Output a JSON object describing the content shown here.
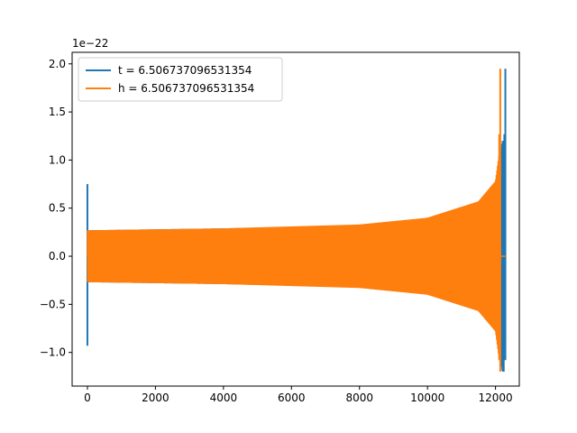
{
  "chart_data": {
    "type": "line",
    "title": "",
    "xlabel": "",
    "ylabel": "",
    "y_offset_label": "1e−22",
    "xlim": [
      -450,
      12700
    ],
    "ylim": [
      -1.35,
      2.12
    ],
    "x_ticks": [
      0,
      2000,
      4000,
      6000,
      8000,
      10000,
      12000
    ],
    "x_tick_labels": [
      "0",
      "2000",
      "4000",
      "6000",
      "8000",
      "10000",
      "12000"
    ],
    "y_ticks": [
      -1.0,
      -0.5,
      0.0,
      0.5,
      1.0,
      1.5,
      2.0
    ],
    "y_tick_labels": [
      "−1.0",
      "−0.5",
      "0.0",
      "0.5",
      "1.0",
      "1.5",
      "2.0"
    ],
    "grid": false,
    "legend_position": "upper-left",
    "series": [
      {
        "name": "t = 6.506737096531354",
        "color": "#1f77b4",
        "x_range": [
          0,
          12290
        ],
        "spike_start": {
          "x": 0,
          "min": -0.93,
          "max": 0.75
        },
        "envelope": [
          {
            "x": 0,
            "amp": 0.27
          },
          {
            "x": 4000,
            "amp": 0.29
          },
          {
            "x": 8000,
            "amp": 0.32
          },
          {
            "x": 10000,
            "amp": 0.39
          },
          {
            "x": 11500,
            "amp": 0.55
          },
          {
            "x": 12000,
            "amp": 0.75
          },
          {
            "x": 12200,
            "amp": 1.2
          }
        ],
        "merger": {
          "x": 12290,
          "min": -1.08,
          "max": 1.95
        },
        "ringdown_end_x": 12290
      },
      {
        "name": "h = 6.506737096531354",
        "color": "#ff7f0e",
        "x_range": [
          0,
          12290
        ],
        "envelope": [
          {
            "x": 0,
            "amp": 0.27
          },
          {
            "x": 4000,
            "amp": 0.29
          },
          {
            "x": 8000,
            "amp": 0.33
          },
          {
            "x": 10000,
            "amp": 0.4
          },
          {
            "x": 11500,
            "amp": 0.57
          },
          {
            "x": 12000,
            "amp": 0.78
          },
          {
            "x": 12120,
            "amp": 1.1
          }
        ],
        "merger": {
          "x": 12140,
          "min": -1.2,
          "max": 1.95
        },
        "flat_after": {
          "x_start": 12140,
          "x_end": 12290,
          "y": 0.0
        }
      }
    ]
  }
}
